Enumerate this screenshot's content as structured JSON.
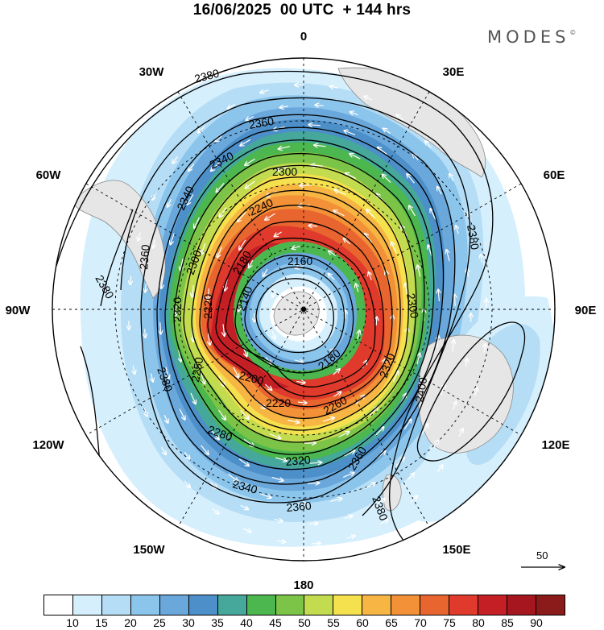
{
  "header": {
    "title": "16/06/2025  00 UTC  + 144 hrs",
    "brand": "MODES",
    "brand_mark": "©"
  },
  "map": {
    "longitude_labels": [
      "0",
      "30E",
      "60E",
      "90E",
      "120E",
      "150E",
      "180",
      "150W",
      "120W",
      "90W",
      "60W",
      "30W"
    ],
    "contour_labels": [
      "2140",
      "2160",
      "2180",
      "2180",
      "2200",
      "2220",
      "2220",
      "2240",
      "2250",
      "2260",
      "2280",
      "2300",
      "2300",
      "2300",
      "2320",
      "2320",
      "2320",
      "2340",
      "2340",
      "2340",
      "2360",
      "2360",
      "2360",
      "2360",
      "2380",
      "2380",
      "2380",
      "2380",
      "2380",
      "2400"
    ],
    "colors": {
      "land": "#e6e6e6",
      "coast": "#8a8a8a",
      "contour": "#000000",
      "wind_vectors": "#ffffff"
    }
  },
  "legend": {
    "colorbar_labels": [
      "10",
      "15",
      "20",
      "25",
      "30",
      "35",
      "40",
      "45",
      "50",
      "55",
      "60",
      "65",
      "70",
      "75",
      "80",
      "85",
      "90"
    ],
    "colorbar_colors": [
      "#ffffff",
      "#d5effc",
      "#b5def6",
      "#8cc5ec",
      "#6aa8dc",
      "#4c8fc9",
      "#46a89a",
      "#4cb64f",
      "#7cc447",
      "#c2db4f",
      "#f5e04d",
      "#f7b543",
      "#f29137",
      "#e9652f",
      "#df3a2b",
      "#c51f26",
      "#a5161f",
      "#8b1a1a"
    ],
    "reference_vector_label": "50"
  }
}
